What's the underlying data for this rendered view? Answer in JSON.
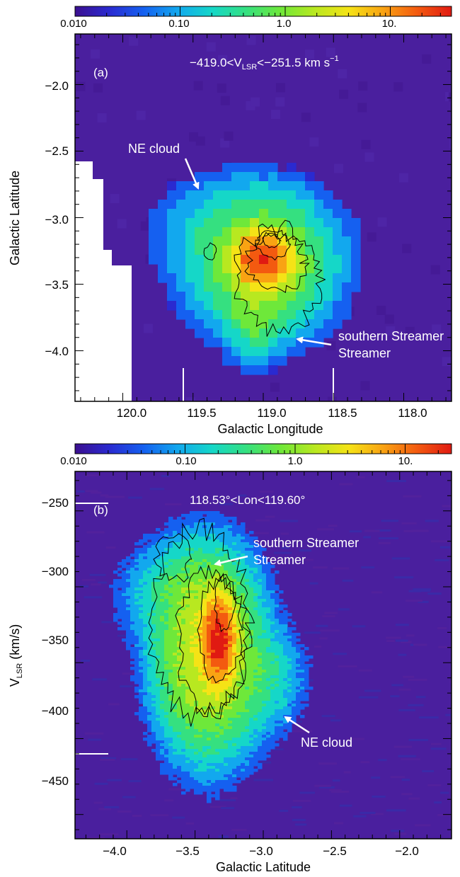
{
  "colorbar_ticks": [
    "0.010",
    "0.10",
    "1.0",
    "10."
  ],
  "colors": {
    "background": "#4a1f9e",
    "colormap": [
      "#3b0f8f",
      "#2a2ad0",
      "#1560f0",
      "#12a8ee",
      "#15d7c8",
      "#35e080",
      "#6ee83a",
      "#b8e820",
      "#f5e316",
      "#f9a313",
      "#f35a10",
      "#e01a12"
    ]
  },
  "chart_data": [
    {
      "panel": "(a)",
      "type": "heatmap",
      "label": "(a)",
      "velocity_range_text": "−419.0<V",
      "velocity_sub": "LSR",
      "velocity_range_text2": "<−251.5 km s",
      "velocity_unit_sup": "−1",
      "xlabel": "Galactic Longitude",
      "ylabel": "Galactic Latitude",
      "x_reversed": true,
      "xlim": [
        120.34,
        117.66
      ],
      "ylim": [
        -4.38,
        -1.62
      ],
      "xticks": [
        "120.0",
        "119.5",
        "119.0",
        "118.5",
        "118.0"
      ],
      "yticks": [
        "−2.0",
        "−2.5",
        "−3.0",
        "−3.5",
        "−4.0"
      ],
      "colorbar": {
        "scale": "log",
        "range": [
          0.01,
          50
        ]
      },
      "annotations": [
        "NE cloud",
        "southern Streamer"
      ],
      "integration_limits_lon": [
        119.6,
        118.53
      ],
      "blobs": [
        {
          "x": 119.18,
          "y": -3.08,
          "sx": 0.3,
          "sy": 0.2,
          "value": 0.22
        },
        {
          "x": 119.0,
          "y": -3.35,
          "sx": 0.24,
          "sy": 0.24,
          "value": 1.6
        },
        {
          "x": 119.0,
          "y": -3.32,
          "sx": 0.1,
          "sy": 0.1,
          "value": 35
        },
        {
          "x": 119.05,
          "y": -3.72,
          "sx": 0.1,
          "sy": 0.16,
          "value": 0.9
        }
      ]
    },
    {
      "panel": "(b)",
      "type": "heatmap",
      "label": "(b)",
      "lon_range_text": "118.53°<Lon<119.60°",
      "xlabel": "Galactic Latitude",
      "ylabel": "V",
      "ylabel_sub": "LSR",
      "ylabel_unit": " (km/s)",
      "xlim": [
        -4.38,
        -1.62
      ],
      "ylim": [
        -466,
        -224
      ],
      "xticks": [
        "−4.0",
        "−3.5",
        "−3.0",
        "−2.5",
        "−2.0"
      ],
      "yticks": [
        "−250",
        "−300",
        "−350",
        "−400",
        "−450"
      ],
      "colorbar": {
        "scale": "log",
        "range": [
          0.01,
          30
        ]
      },
      "annotations": [
        "southern Streamer",
        "NE cloud"
      ],
      "integration_limits_vlsr": [
        -251.5,
        -419.0
      ],
      "blobs": [
        {
          "x": -3.55,
          "y": -305,
          "sx": 0.22,
          "sy": 18,
          "value": 0.4
        },
        {
          "x": -3.4,
          "y": -345,
          "sx": 0.18,
          "sy": 30,
          "value": 2.5
        },
        {
          "x": -3.33,
          "y": -335,
          "sx": 0.06,
          "sy": 14,
          "value": 25
        },
        {
          "x": -3.0,
          "y": -360,
          "sx": 0.15,
          "sy": 18,
          "value": 0.25
        }
      ]
    }
  ]
}
